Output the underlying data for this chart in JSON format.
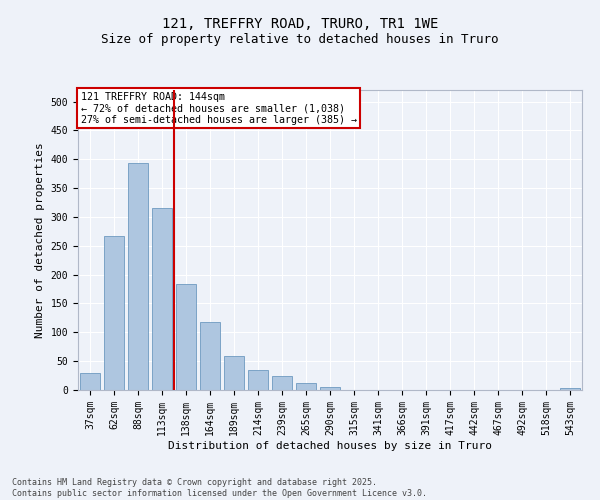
{
  "title1": "121, TREFFRY ROAD, TRURO, TR1 1WE",
  "title2": "Size of property relative to detached houses in Truro",
  "xlabel": "Distribution of detached houses by size in Truro",
  "ylabel": "Number of detached properties",
  "categories": [
    "37sqm",
    "62sqm",
    "88sqm",
    "113sqm",
    "138sqm",
    "164sqm",
    "189sqm",
    "214sqm",
    "239sqm",
    "265sqm",
    "290sqm",
    "315sqm",
    "341sqm",
    "366sqm",
    "391sqm",
    "417sqm",
    "442sqm",
    "467sqm",
    "492sqm",
    "518sqm",
    "543sqm"
  ],
  "values": [
    30,
    267,
    393,
    315,
    183,
    118,
    59,
    34,
    25,
    13,
    6,
    0,
    0,
    0,
    0,
    0,
    0,
    0,
    0,
    0,
    3
  ],
  "bar_color": "#aec6e0",
  "bar_edge_color": "#5b8db8",
  "vline_x_index": 4,
  "vline_color": "#cc0000",
  "annotation_box_text": "121 TREFFRY ROAD: 144sqm\n← 72% of detached houses are smaller (1,038)\n27% of semi-detached houses are larger (385) →",
  "annotation_box_color": "#cc0000",
  "annotation_text_color": "#000000",
  "background_color": "#eef2f9",
  "grid_color": "#ffffff",
  "yticks": [
    0,
    50,
    100,
    150,
    200,
    250,
    300,
    350,
    400,
    450,
    500
  ],
  "ylim": [
    0,
    520
  ],
  "footer_text": "Contains HM Land Registry data © Crown copyright and database right 2025.\nContains public sector information licensed under the Open Government Licence v3.0.",
  "title_fontsize": 10,
  "subtitle_fontsize": 9,
  "axis_fontsize": 8,
  "tick_fontsize": 7
}
